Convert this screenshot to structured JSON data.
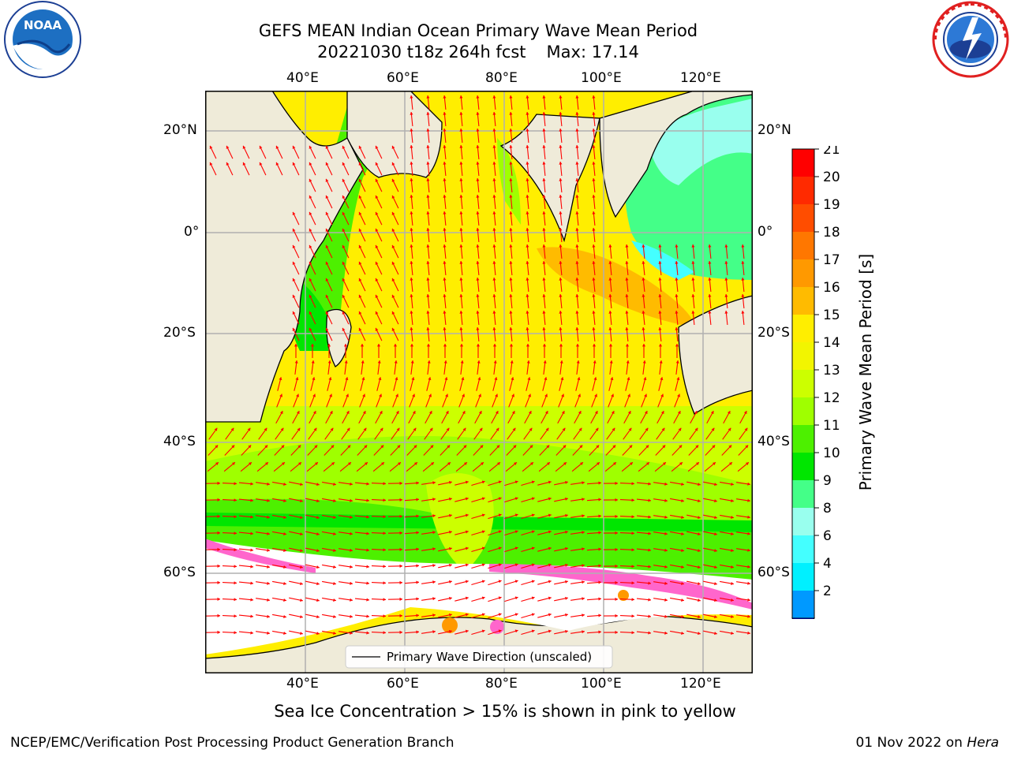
{
  "header": {
    "title": "GEFS MEAN Indian Ocean Primary Wave Mean Period",
    "run": "20221030 t18z 264h fcst",
    "max": "Max: 17.14"
  },
  "logos": {
    "left": {
      "text": "NOAA",
      "ring_text": "NATIONAL OCEANIC AND ATMOSPHERIC ADMINISTRATION · U.S. DEPARTMENT OF COMMERCE"
    },
    "right": {
      "ring_text": "NATIONAL WEATHER SERVICE"
    }
  },
  "map": {
    "lon_labels_top": [
      "40°E",
      "60°E",
      "80°E",
      "100°E",
      "120°E"
    ],
    "lon_labels_bottom": [
      "40°E",
      "60°E",
      "80°E",
      "100°E",
      "120°E"
    ],
    "lat_labels_left": [
      "20°N",
      "0°",
      "20°S",
      "40°S",
      "60°S"
    ],
    "lat_labels_right": [
      "20°N",
      "0°",
      "20°S",
      "40°S",
      "60°S"
    ],
    "legend": "Primary Wave Direction (unscaled)",
    "colors": {
      "land": "#efebd9",
      "ice": "#ff66cc",
      "arrow": "#ff0000",
      "grid": "#b0b0b0"
    }
  },
  "colorbar": {
    "label": "Primary Wave Mean Period [s]",
    "ticks": [
      "21",
      "20",
      "19",
      "18",
      "17",
      "16",
      "15",
      "14",
      "13",
      "12",
      "11",
      "10",
      "9",
      "8",
      "6",
      "4",
      "2"
    ],
    "colors": [
      "#ff0000",
      "#ff2a00",
      "#ff4d00",
      "#ff7700",
      "#ff9900",
      "#ffbb00",
      "#ffee00",
      "#f2f500",
      "#ccff00",
      "#9fff00",
      "#4df000",
      "#00e600",
      "#44ff88",
      "#99ffee",
      "#44ffff",
      "#00f0ff",
      "#0099ff"
    ],
    "under_color": "#0000ff"
  },
  "caption": "Sea Ice Concentration > 15% is shown in pink to yellow",
  "footer": {
    "left": "NCEP/EMC/Verification Post Processing Product Generation Branch",
    "date": "01 Nov 2022 on",
    "machine": "Hera"
  }
}
